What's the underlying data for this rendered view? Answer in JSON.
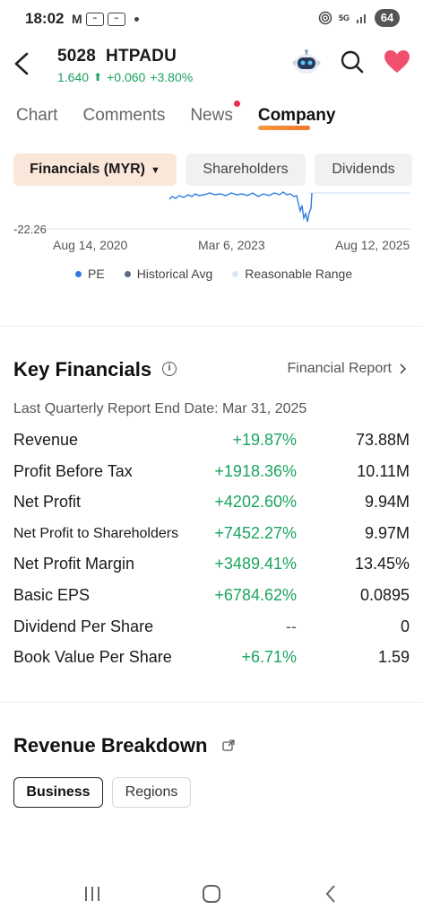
{
  "status_bar": {
    "time": "18:02",
    "network": "5G",
    "battery": "64"
  },
  "header": {
    "stock_code": "5028",
    "stock_name": "HTPADU",
    "price": "1.640",
    "change": "+0.060",
    "change_pct": "+3.80%",
    "icons": [
      "back-icon",
      "robot-assistant-icon",
      "search-icon",
      "heart-icon"
    ]
  },
  "tabs": [
    {
      "label": "Chart",
      "active": false
    },
    {
      "label": "Comments",
      "active": false
    },
    {
      "label": "News",
      "active": false,
      "notification_dot": true
    },
    {
      "label": "Company",
      "active": true
    }
  ],
  "sub_tabs": [
    {
      "label": "Financials (MYR)",
      "active": true,
      "dropdown": true
    },
    {
      "label": "Shareholders",
      "active": false
    },
    {
      "label": "Dividends",
      "active": false
    }
  ],
  "pe_chart": {
    "y_tick_label": "-22.26",
    "x_tick_labels": [
      "Aug 14, 2020",
      "Mar 6, 2023",
      "Aug 12, 2025"
    ],
    "legend": [
      {
        "label": "PE",
        "color": "#2f7be0"
      },
      {
        "label": "Historical Avg",
        "color": "#5b6b82"
      },
      {
        "label": "Reasonable Range",
        "color": "#dbe6f6"
      }
    ]
  },
  "key_financials": {
    "title": "Key Financials",
    "report_link": "Financial Report",
    "report_date": "Last Quarterly Report End Date: Mar 31, 2025",
    "rows": [
      {
        "label": "Revenue",
        "change": "+19.87%",
        "value": "73.88M"
      },
      {
        "label": "Profit Before Tax",
        "change": "+1918.36%",
        "value": "10.11M"
      },
      {
        "label": "Net Profit",
        "change": "+4202.60%",
        "value": "9.94M"
      },
      {
        "label": "Net Profit to Shareholders",
        "change": "+7452.27%",
        "value": "9.97M"
      },
      {
        "label": "Net Profit Margin",
        "change": "+3489.41%",
        "value": "13.45%"
      },
      {
        "label": "Basic EPS",
        "change": "+6784.62%",
        "value": "0.0895"
      },
      {
        "label": "Dividend Per Share",
        "change": "--",
        "value": "0"
      },
      {
        "label": "Book Value Per Share",
        "change": "+6.71%",
        "value": "1.59"
      }
    ]
  },
  "revenue_breakdown": {
    "title": "Revenue Breakdown",
    "options": [
      {
        "label": "Business",
        "active": true
      },
      {
        "label": "Regions",
        "active": false
      }
    ]
  },
  "colors": {
    "positive": "#1aa35f",
    "accent": "#f4762d",
    "active_chip_bg": "#fbe6da",
    "heart": "#f0506e"
  }
}
